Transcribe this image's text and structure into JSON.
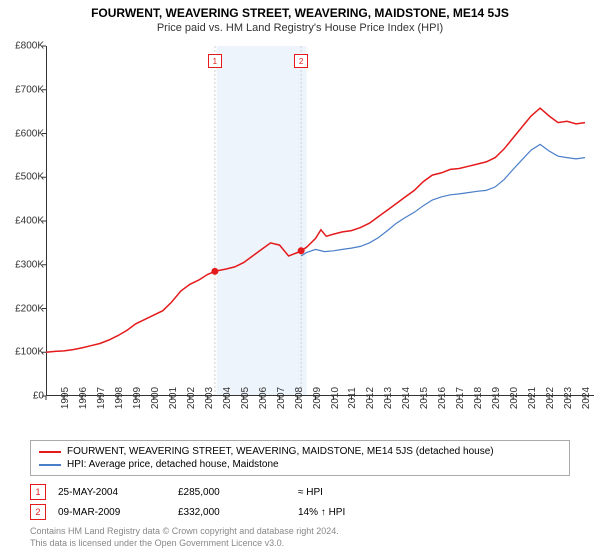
{
  "title": "FOURWENT, WEAVERING STREET, WEAVERING, MAIDSTONE, ME14 5JS",
  "subtitle": "Price paid vs. HM Land Registry's House Price Index (HPI)",
  "chart": {
    "type": "line",
    "plot_bg": "#ffffff",
    "band_color": "#eef4fb",
    "marker_vline_color": "#d0d0d0",
    "x_range": [
      1995,
      2025.5
    ],
    "y_range": [
      0,
      800000
    ],
    "y_ticks": [
      0,
      100000,
      200000,
      300000,
      400000,
      500000,
      600000,
      700000,
      800000
    ],
    "y_labels": [
      "£0",
      "£100K",
      "£200K",
      "£300K",
      "£400K",
      "£500K",
      "£600K",
      "£700K",
      "£800K"
    ],
    "x_ticks": [
      1995,
      1996,
      1997,
      1998,
      1999,
      2000,
      2001,
      2002,
      2003,
      2004,
      2005,
      2006,
      2007,
      2008,
      2009,
      2010,
      2011,
      2012,
      2013,
      2014,
      2015,
      2016,
      2017,
      2018,
      2019,
      2020,
      2021,
      2022,
      2023,
      2024,
      2025
    ],
    "x_labels": [
      "1995",
      "1996",
      "1997",
      "1998",
      "1999",
      "2000",
      "2001",
      "2002",
      "2003",
      "2004",
      "2005",
      "2006",
      "2007",
      "2008",
      "2009",
      "2010",
      "2011",
      "2012",
      "2013",
      "2014",
      "2015",
      "2016",
      "2017",
      "2018",
      "2019",
      "2020",
      "2021",
      "2022",
      "2023",
      "2024",
      "2025"
    ],
    "tick_color": "#333333",
    "axis_color": "#333333",
    "tick_font_size": 10,
    "band_start_x": 2004.5,
    "band_end_x": 2009.5,
    "series": [
      {
        "name": "red",
        "label": "FOURWENT, WEAVERING STREET, WEAVERING, MAIDSTONE, ME14 5JS (detached house)",
        "color": "#e41a1c",
        "width": 1.5,
        "points": [
          [
            1995.0,
            100000
          ],
          [
            1995.5,
            102000
          ],
          [
            1996.0,
            103000
          ],
          [
            1996.5,
            106000
          ],
          [
            1997.0,
            110000
          ],
          [
            1997.5,
            115000
          ],
          [
            1998.0,
            120000
          ],
          [
            1998.5,
            128000
          ],
          [
            1999.0,
            138000
          ],
          [
            1999.5,
            150000
          ],
          [
            2000.0,
            165000
          ],
          [
            2000.5,
            175000
          ],
          [
            2001.0,
            185000
          ],
          [
            2001.5,
            195000
          ],
          [
            2002.0,
            215000
          ],
          [
            2002.5,
            240000
          ],
          [
            2003.0,
            255000
          ],
          [
            2003.5,
            265000
          ],
          [
            2004.0,
            278000
          ],
          [
            2004.4,
            285000
          ],
          [
            2004.5,
            286000
          ],
          [
            2005.0,
            290000
          ],
          [
            2005.5,
            295000
          ],
          [
            2006.0,
            305000
          ],
          [
            2006.5,
            320000
          ],
          [
            2007.0,
            335000
          ],
          [
            2007.5,
            350000
          ],
          [
            2008.0,
            345000
          ],
          [
            2008.5,
            320000
          ],
          [
            2009.0,
            328000
          ],
          [
            2009.2,
            332000
          ],
          [
            2009.5,
            340000
          ],
          [
            2010.0,
            360000
          ],
          [
            2010.3,
            380000
          ],
          [
            2010.6,
            365000
          ],
          [
            2011.0,
            370000
          ],
          [
            2011.5,
            375000
          ],
          [
            2012.0,
            378000
          ],
          [
            2012.5,
            385000
          ],
          [
            2013.0,
            395000
          ],
          [
            2013.5,
            410000
          ],
          [
            2014.0,
            425000
          ],
          [
            2014.5,
            440000
          ],
          [
            2015.0,
            455000
          ],
          [
            2015.5,
            470000
          ],
          [
            2016.0,
            490000
          ],
          [
            2016.5,
            505000
          ],
          [
            2017.0,
            510000
          ],
          [
            2017.5,
            518000
          ],
          [
            2018.0,
            520000
          ],
          [
            2018.5,
            525000
          ],
          [
            2019.0,
            530000
          ],
          [
            2019.5,
            535000
          ],
          [
            2020.0,
            545000
          ],
          [
            2020.5,
            565000
          ],
          [
            2021.0,
            590000
          ],
          [
            2021.5,
            615000
          ],
          [
            2022.0,
            640000
          ],
          [
            2022.5,
            658000
          ],
          [
            2023.0,
            640000
          ],
          [
            2023.5,
            625000
          ],
          [
            2024.0,
            628000
          ],
          [
            2024.5,
            622000
          ],
          [
            2025.0,
            625000
          ]
        ]
      },
      {
        "name": "blue",
        "label": "HPI: Average price, detached house, Maidstone",
        "color": "#4a7ec8",
        "width": 1.2,
        "points": [
          [
            2009.2,
            320000
          ],
          [
            2009.5,
            328000
          ],
          [
            2010.0,
            335000
          ],
          [
            2010.5,
            330000
          ],
          [
            2011.0,
            332000
          ],
          [
            2011.5,
            335000
          ],
          [
            2012.0,
            338000
          ],
          [
            2012.5,
            342000
          ],
          [
            2013.0,
            350000
          ],
          [
            2013.5,
            362000
          ],
          [
            2014.0,
            378000
          ],
          [
            2014.5,
            395000
          ],
          [
            2015.0,
            408000
          ],
          [
            2015.5,
            420000
          ],
          [
            2016.0,
            435000
          ],
          [
            2016.5,
            448000
          ],
          [
            2017.0,
            455000
          ],
          [
            2017.5,
            460000
          ],
          [
            2018.0,
            462000
          ],
          [
            2018.5,
            465000
          ],
          [
            2019.0,
            468000
          ],
          [
            2019.5,
            470000
          ],
          [
            2020.0,
            478000
          ],
          [
            2020.5,
            495000
          ],
          [
            2021.0,
            518000
          ],
          [
            2021.5,
            540000
          ],
          [
            2022.0,
            562000
          ],
          [
            2022.5,
            575000
          ],
          [
            2023.0,
            560000
          ],
          [
            2023.5,
            548000
          ],
          [
            2024.0,
            545000
          ],
          [
            2024.5,
            542000
          ],
          [
            2025.0,
            545000
          ]
        ]
      }
    ],
    "markers": [
      {
        "n": "1",
        "x": 2004.4,
        "y": 285000,
        "color": "#e41a1c"
      },
      {
        "n": "2",
        "x": 2009.2,
        "y": 332000,
        "color": "#e41a1c"
      }
    ],
    "marker_labels": [
      {
        "n": "1",
        "x": 2004.4,
        "color": "#e41a1c"
      },
      {
        "n": "2",
        "x": 2009.2,
        "color": "#e41a1c"
      }
    ]
  },
  "legend": {
    "series": [
      {
        "color": "#e41a1c",
        "label": "FOURWENT, WEAVERING STREET, WEAVERING, MAIDSTONE, ME14 5JS (detached house)"
      },
      {
        "color": "#4a7ec8",
        "label": "HPI: Average price, detached house, Maidstone"
      }
    ]
  },
  "transactions": [
    {
      "n": "1",
      "color": "#e41a1c",
      "date": "25-MAY-2004",
      "price": "£285,000",
      "delta": "≈ HPI"
    },
    {
      "n": "2",
      "color": "#e41a1c",
      "date": "09-MAR-2009",
      "price": "£332,000",
      "delta": "14% ↑ HPI"
    }
  ],
  "footer1": "Contains HM Land Registry data © Crown copyright and database right 2024.",
  "footer2": "This data is licensed under the Open Government Licence v3.0."
}
